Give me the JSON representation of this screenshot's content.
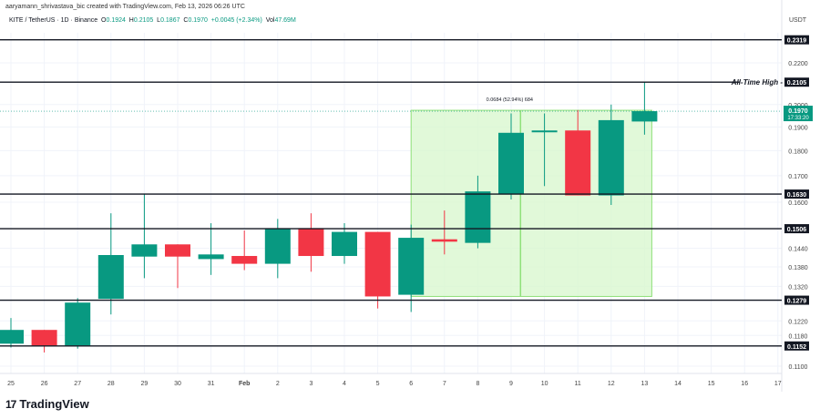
{
  "header": {
    "credit": "aaryamann_shrivastava_bic created with TradingView.com, Feb 13, 2026 06:26 UTC",
    "symbol": "KITE / TetherUS · 1D · Binance",
    "open_label": "O",
    "open": "0.1924",
    "high_label": "H",
    "high": "0.2105",
    "low_label": "L",
    "low": "0.1867",
    "close_label": "C",
    "close": "0.1970",
    "change": "+0.0045 (+2.34%)",
    "vol_label": "Vol",
    "vol": "47.69M"
  },
  "axis": {
    "currency": "USDT"
  },
  "branding": {
    "logo_text": "TradingView",
    "logo_mark": "17"
  },
  "colors": {
    "up": "#089981",
    "down": "#f23645",
    "measure_fill": "#d9f7cf",
    "measure_border": "#8fe07a",
    "level_line": "#131722",
    "price_tag": "#089981"
  },
  "chart_data": {
    "type": "candlestick",
    "title": "KITE / TetherUS · 1D · Binance",
    "xlabel": "",
    "ylabel": "USDT",
    "scale": "log",
    "ylim": [
      0.107,
      0.24
    ],
    "x_tick_labels": [
      "25",
      "26",
      "27",
      "28",
      "29",
      "30",
      "31",
      "Feb",
      "2",
      "3",
      "4",
      "5",
      "6",
      "7",
      "8",
      "9",
      "10",
      "11",
      "12",
      "13",
      "14",
      "15",
      "16",
      "17"
    ],
    "y_tick_labels": [
      "0.2200",
      "0.2000",
      "0.1900",
      "0.1800",
      "0.1700",
      "0.1600",
      "0.1440",
      "0.1380",
      "0.1320",
      "0.1220",
      "0.1180",
      "0.1100"
    ],
    "candles": [
      {
        "date": "25",
        "open": 0.1158,
        "high": 0.1228,
        "low": 0.1148,
        "close": 0.1195
      },
      {
        "date": "26",
        "open": 0.1195,
        "high": 0.1195,
        "low": 0.1135,
        "close": 0.1153
      },
      {
        "date": "27",
        "open": 0.1153,
        "high": 0.1285,
        "low": 0.1145,
        "close": 0.1272
      },
      {
        "date": "28",
        "open": 0.1283,
        "high": 0.156,
        "low": 0.1238,
        "close": 0.1418
      },
      {
        "date": "29",
        "open": 0.1413,
        "high": 0.163,
        "low": 0.1345,
        "close": 0.1453
      },
      {
        "date": "30",
        "open": 0.1453,
        "high": 0.1453,
        "low": 0.1315,
        "close": 0.1413
      },
      {
        "date": "31",
        "open": 0.1405,
        "high": 0.1525,
        "low": 0.1355,
        "close": 0.142
      },
      {
        "date": "Feb",
        "open": 0.1415,
        "high": 0.15,
        "low": 0.137,
        "close": 0.139
      },
      {
        "date": "2",
        "open": 0.139,
        "high": 0.154,
        "low": 0.1345,
        "close": 0.1505
      },
      {
        "date": "3",
        "open": 0.1508,
        "high": 0.156,
        "low": 0.1365,
        "close": 0.1415
      },
      {
        "date": "4",
        "open": 0.1415,
        "high": 0.1525,
        "low": 0.139,
        "close": 0.1495
      },
      {
        "date": "5",
        "open": 0.1495,
        "high": 0.1495,
        "low": 0.1255,
        "close": 0.129
      },
      {
        "date": "6",
        "open": 0.1295,
        "high": 0.152,
        "low": 0.1245,
        "close": 0.1475
      },
      {
        "date": "7",
        "open": 0.147,
        "high": 0.157,
        "low": 0.142,
        "close": 0.1462
      },
      {
        "date": "8",
        "open": 0.1458,
        "high": 0.17,
        "low": 0.144,
        "close": 0.164
      },
      {
        "date": "9",
        "open": 0.163,
        "high": 0.196,
        "low": 0.161,
        "close": 0.1875
      },
      {
        "date": "10",
        "open": 0.188,
        "high": 0.196,
        "low": 0.166,
        "close": 0.1885
      },
      {
        "date": "11",
        "open": 0.1885,
        "high": 0.1975,
        "low": 0.1625,
        "close": 0.1625
      },
      {
        "date": "12",
        "open": 0.1625,
        "high": 0.2,
        "low": 0.159,
        "close": 0.193
      },
      {
        "date": "13",
        "open": 0.1924,
        "high": 0.2105,
        "low": 0.1867,
        "close": 0.197
      }
    ],
    "horizontal_levels": [
      {
        "price": "0.2319",
        "label": ""
      },
      {
        "price": "0.2105",
        "label": "All-Time High"
      },
      {
        "price": "0.1630",
        "label": ""
      },
      {
        "price": "0.1506",
        "label": ""
      },
      {
        "price": "0.1279",
        "label": ""
      },
      {
        "price": "0.1152",
        "label": ""
      }
    ],
    "current_price": {
      "value": "0.1970",
      "countdown": "17:33:20"
    },
    "measure": {
      "label": "0.0684 (52.94%) 684",
      "from_date": "6",
      "to_date": "13",
      "low": 0.129,
      "high": 0.1974
    },
    "grid": true,
    "legend_position": "top-left"
  }
}
